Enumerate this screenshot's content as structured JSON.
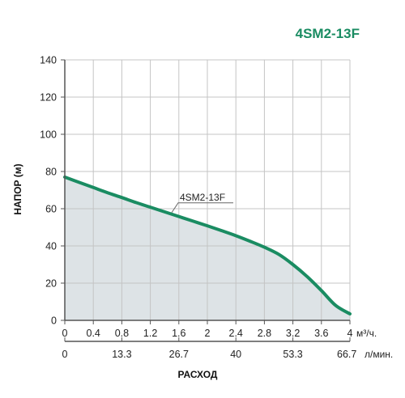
{
  "colors": {
    "curve": "#1a8c62",
    "fill": "#dde3e6",
    "grid": "#c4c4c4",
    "axis": "#555555",
    "title": "#1a8c62",
    "text": "#222222"
  },
  "chart_data": {
    "type": "area",
    "title": "4SM2-13F",
    "ylabel": "НАПОР (м)",
    "xlabel": "РАСХОД",
    "xunit": "м³/ч.",
    "x2unit": "л/мин.",
    "grid": true,
    "ylim": [
      0,
      140
    ],
    "xlim": [
      0,
      4
    ],
    "yticks": [
      "0",
      "20",
      "40",
      "60",
      "80",
      "100",
      "120",
      "140"
    ],
    "yticks_values": [
      0,
      20,
      40,
      60,
      80,
      100,
      120,
      140
    ],
    "xticks": [
      "0",
      "0.4",
      "0.8",
      "1.2",
      "1.6",
      "2",
      "2.4",
      "2.8",
      "3.2",
      "3.6",
      "4"
    ],
    "xticks_values": [
      0,
      0.4,
      0.8,
      1.2,
      1.6,
      2.0,
      2.4,
      2.8,
      3.2,
      3.6,
      4.0
    ],
    "x2ticks": [
      "0",
      "13.3",
      "26.7",
      "40",
      "53.3",
      "66.7"
    ],
    "x2ticks_values": [
      0,
      0.8,
      1.6,
      2.4,
      3.2,
      4.0
    ],
    "series": [
      {
        "name": "4SM2-13F",
        "x": [
          0,
          0.2,
          0.4,
          0.6,
          0.8,
          1.0,
          1.2,
          1.4,
          1.6,
          1.8,
          2.0,
          2.2,
          2.4,
          2.6,
          2.8,
          3.0,
          3.2,
          3.4,
          3.6,
          3.8,
          4.0
        ],
        "y": [
          77,
          74.2,
          71.4,
          68.6,
          66,
          63.3,
          60.8,
          58.3,
          55.8,
          53.3,
          50.8,
          48.2,
          45.5,
          42.5,
          39.3,
          35.5,
          30,
          23.5,
          16,
          8,
          3.5
        ]
      }
    ],
    "annotation": {
      "text": "4SM2-13F",
      "x": 1.5
    }
  }
}
